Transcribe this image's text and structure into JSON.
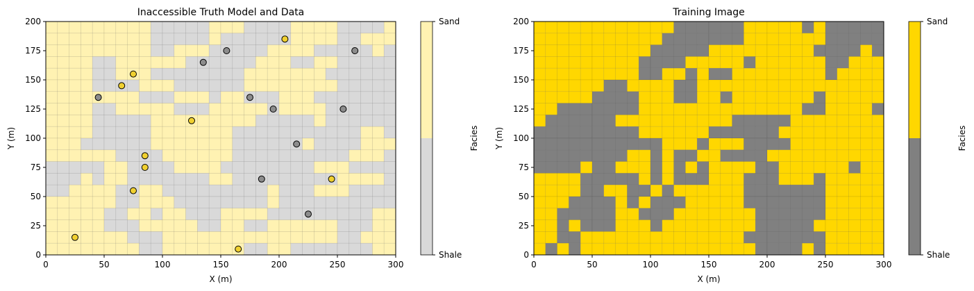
{
  "colors": {
    "shale_light": "#d9d9d9",
    "sand_light": "#fff2b2",
    "shale_dark": "#808080",
    "sand_dark": "#ffd700",
    "sand_well": "#f0d030",
    "shale_well": "#8c8c8c"
  },
  "chart_data": [
    {
      "type": "heatmap",
      "title": "Inaccessible Truth Model and Data",
      "xlabel": "X (m)",
      "ylabel": "Y (m)",
      "xlim": [
        0,
        300
      ],
      "ylim": [
        0,
        200
      ],
      "cell_size": 10,
      "x_ticks": [
        "0",
        "50",
        "100",
        "150",
        "200",
        "250",
        "300"
      ],
      "y_ticks": [
        "0",
        "25",
        "50",
        "75",
        "100",
        "125",
        "150",
        "175",
        "200"
      ],
      "colorbar": {
        "label": "Facies",
        "ticks": [
          "Shale",
          "Sand"
        ]
      },
      "grid_legend": "row strings listed from top (y=190-200) to bottom (y=0-10); S = Sand, . = Shale; each character is one 10 m cell",
      "grid": [
        "SSSSSSSSS.....SSS....SSSS....S",
        "SSSSSSSSS.....S......SSSS..SSS",
        "SSSSSSSSS..SSS.....SSSS.....S.",
        "SSSS..SSSSSS......SSS..SS.....",
        "SSSS..SSS........SSSSSSS......",
        "SSSS....SSS......SSSSSSSS.....",
        "SSSSSSSS...SSS.SS...SSS.......",
        "SSSS..SSSSS...SSSSS.SSSS......",
        "SSSS.....SSSSSSSSS.....S......",
        "SSSS.....SSSSSSS...........SS.",
        "SSS......SSSSSSS......S....SSS",
        "SSSSSS....SSSSSS..........SSS.",
        ".....SS....SSSS........SSS....",
        "...S.SS.......SS.........SSSS.",
        "..SSSS..SS.........S...SSS....",
        "SSSSSS..SSS........S..........",
        "SSSSS..SS.SS...SSSS.........SS",
        "SSSSS...SSSSS..SS..SSSSSS...SS",
        "SSSSSSS...SSSSSSSSSSSSSSS..SSS",
        "SSSSSSSS..SSSSSSS..SS.......SS"
      ],
      "wells": [
        {
          "x": 205,
          "y": 185,
          "facies": "Sand"
        },
        {
          "x": 155,
          "y": 175,
          "facies": "Shale"
        },
        {
          "x": 265,
          "y": 175,
          "facies": "Shale"
        },
        {
          "x": 135,
          "y": 165,
          "facies": "Shale"
        },
        {
          "x": 75,
          "y": 155,
          "facies": "Sand"
        },
        {
          "x": 65,
          "y": 145,
          "facies": "Sand"
        },
        {
          "x": 45,
          "y": 135,
          "facies": "Shale"
        },
        {
          "x": 175,
          "y": 135,
          "facies": "Shale"
        },
        {
          "x": 195,
          "y": 125,
          "facies": "Shale"
        },
        {
          "x": 255,
          "y": 125,
          "facies": "Shale"
        },
        {
          "x": 125,
          "y": 115,
          "facies": "Sand"
        },
        {
          "x": 215,
          "y": 95,
          "facies": "Shale"
        },
        {
          "x": 85,
          "y": 85,
          "facies": "Sand"
        },
        {
          "x": 85,
          "y": 75,
          "facies": "Sand"
        },
        {
          "x": 185,
          "y": 65,
          "facies": "Shale"
        },
        {
          "x": 245,
          "y": 65,
          "facies": "Sand"
        },
        {
          "x": 75,
          "y": 55,
          "facies": "Sand"
        },
        {
          "x": 225,
          "y": 35,
          "facies": "Shale"
        },
        {
          "x": 25,
          "y": 15,
          "facies": "Sand"
        },
        {
          "x": 165,
          "y": 5,
          "facies": "Sand"
        }
      ]
    },
    {
      "type": "heatmap",
      "title": "Training Image",
      "xlabel": "X (m)",
      "ylabel": "Y (m)",
      "xlim": [
        0,
        300
      ],
      "ylim": [
        0,
        200
      ],
      "cell_size": 10,
      "x_ticks": [
        "0",
        "50",
        "100",
        "150",
        "200",
        "250",
        "300"
      ],
      "y_ticks": [
        "0",
        "25",
        "50",
        "75",
        "100",
        "125",
        "150",
        "175",
        "200"
      ],
      "colorbar": {
        "label": "Facies",
        "ticks": [
          "Shale",
          "Sand"
        ]
      },
      "grid_legend": "row strings listed from top (y=190-200) to bottom (y=0-10); S = Sand, . = Shale; each character is one 10 m cell",
      "grid": [
        "SSSSSSSSSSSS......SSSSS.S.....",
        "SSSSSSSSSSS.......SSSSSSS.....",
        "SSSSSSSSSS.....SSSSSSSSS....S.",
        "SSSSSSSSS....SSSSS.SSSSSS..SSS",
        "SSSSSSSSS..SS.S..SSSSSSSS.SSSS",
        "SSSSSS..SSSS..SSSSSSSSSSSSSSSS",
        "SSSSS....SSS..SS.SSSSSSS.SSSSS",
        "SS.......SSSSSSSSSSSSSS..SSSS.",
        "S......SSSSSSSSSS.....SSSSSSSS",
        ".........SSSSSS......SSSSSSSSS",
        "...........SSS.SSS....SSSSSSSS",
        "........SS.S..SS....SSSSSSSSSS",
        "....S..SSS.S.S.SSSS..SSSSSS.SS",
        "SSSS.....S.S...SSS...SSS.SSSSS",
        "SSSS..SS..S.SSSSSS.......SSSSS",
        "SSS....S.S...SSSSS.......SSSSS",
        "SS.....SS...SSSSSSS......SSSSS",
        "SS.S...SSS.SSSSSSSS.....SSSSSS",
        "SS..SSSSSSSSSSSSSS.......SSSSS",
        "S.S.SSSSSSSSSSSSSSS....S.SSSSS"
      ]
    }
  ]
}
